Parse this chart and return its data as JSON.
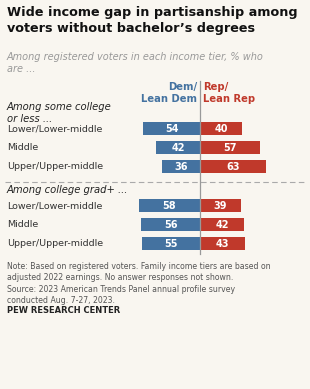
{
  "title": "Wide income gap in partisanship among\nvoters without bachelor’s degrees",
  "subtitle": "Among registered voters in each income tier, % who\nare ...",
  "section1_label": "Among some college\nor less ...",
  "section2_label": "Among college grad+ ...",
  "col_header_dem": "Dem/\nLean Dem",
  "col_header_rep": "Rep/\nLean Rep",
  "section1_rows": [
    {
      "label": "Lower/Lower-middle",
      "dem": 54,
      "rep": 40
    },
    {
      "label": "Middle",
      "dem": 42,
      "rep": 57
    },
    {
      "label": "Upper/Upper-middle",
      "dem": 36,
      "rep": 63
    }
  ],
  "section2_rows": [
    {
      "label": "Lower/Lower-middle",
      "dem": 58,
      "rep": 39
    },
    {
      "label": "Middle",
      "dem": 56,
      "rep": 42
    },
    {
      "label": "Upper/Upper-middle",
      "dem": 55,
      "rep": 43
    }
  ],
  "dem_color": "#4472a0",
  "rep_color": "#c0392b",
  "note_text": "Note: Based on registered voters. Family income tiers are based on\nadjusted 2022 earnings. No answer responses not shown.\nSource: 2023 American Trends Panel annual profile survey\nconducted Aug. 7-27, 2023.",
  "source_label": "PEW RESEARCH CENTER",
  "title_color": "#111111",
  "subtitle_color": "#999999",
  "background_color": "#f9f6f0"
}
